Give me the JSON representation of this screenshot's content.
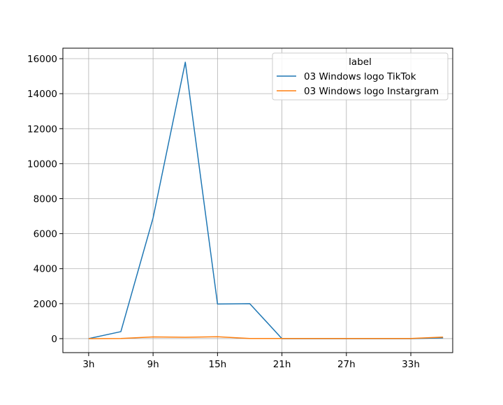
{
  "chart_data": {
    "type": "line",
    "title": "",
    "xlabel": "",
    "ylabel": "",
    "x": [
      3,
      6,
      9,
      12,
      15,
      18,
      21,
      24,
      27,
      30,
      33,
      36
    ],
    "xticks": [
      3,
      9,
      15,
      21,
      27,
      33
    ],
    "xtick_labels": [
      "3h",
      "9h",
      "15h",
      "21h",
      "27h",
      "33h"
    ],
    "xlim": [
      0.6,
      36.9
    ],
    "yticks": [
      0,
      2000,
      4000,
      6000,
      8000,
      10000,
      12000,
      14000,
      16000
    ],
    "ytick_labels": [
      "0",
      "2000",
      "4000",
      "6000",
      "8000",
      "10000",
      "12000",
      "14000",
      "16000"
    ],
    "ylim": [
      -800,
      16600
    ],
    "grid": true,
    "legend": {
      "title": "label",
      "position": "upper right"
    },
    "series": [
      {
        "name": "03 Windows logo TikTok",
        "color": "#1f77b4",
        "values": [
          0,
          400,
          6900,
          15800,
          1980,
          2000,
          0,
          0,
          0,
          0,
          0,
          50
        ]
      },
      {
        "name": "03 Windows logo Instargram",
        "color": "#ff7f0e",
        "values": [
          0,
          10,
          100,
          80,
          110,
          10,
          10,
          10,
          10,
          10,
          10,
          90
        ]
      }
    ]
  }
}
